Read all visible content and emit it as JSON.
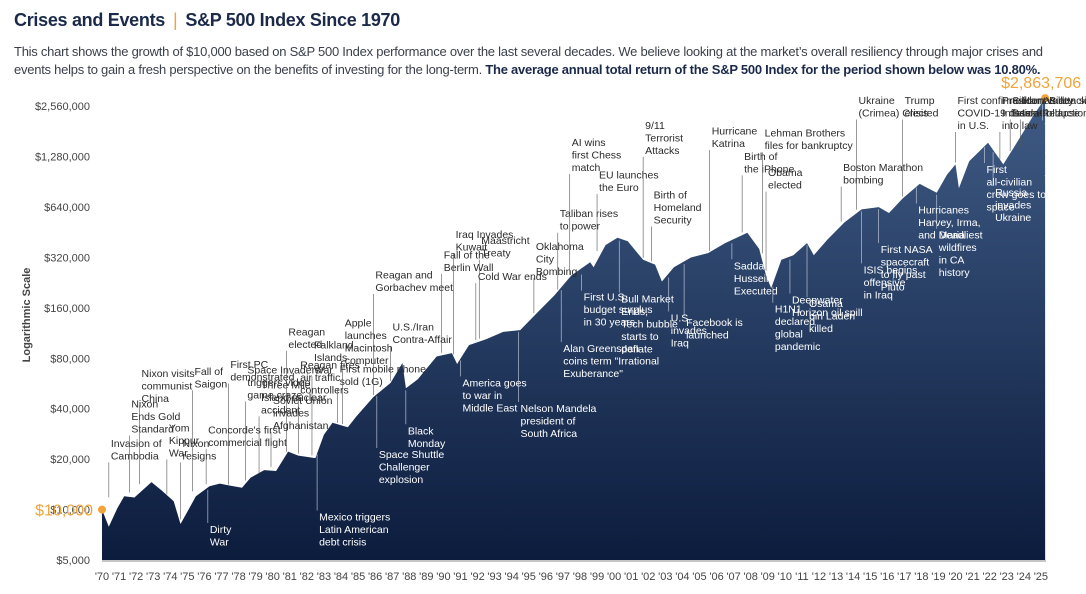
{
  "header": {
    "title_a": "Crises and Events",
    "separator": "|",
    "title_b": "S&P 500 Index Since 1970"
  },
  "description": {
    "text": "This chart shows the growth of $10,000 based on S&P 500 Index performance over the last several decades. We believe looking at the market’s overall resiliency through major crises and events helps to gain a fresh perspective on the benefits of investing for the long-term. ",
    "bold": "The average annual total return of the S&P 500 Index for the period shown below was 10.80%."
  },
  "chart_data": {
    "type": "area",
    "ylabel": "Logarithmic Scale",
    "yscale": "log",
    "ylim": [
      5000,
      3200000
    ],
    "y_ticks": [
      {
        "value": 5000,
        "label": "$5,000"
      },
      {
        "value": 10000,
        "label": "$10,000"
      },
      {
        "value": 20000,
        "label": "$20,000"
      },
      {
        "value": 40000,
        "label": "$40,000"
      },
      {
        "value": 80000,
        "label": "$80,000"
      },
      {
        "value": 160000,
        "label": "$160,000"
      },
      {
        "value": 320000,
        "label": "$320,000"
      },
      {
        "value": 640000,
        "label": "$640,000"
      },
      {
        "value": 1280000,
        "label": "$1,280,000"
      },
      {
        "value": 2560000,
        "label": "$2,560,000"
      }
    ],
    "x_labels": [
      "'70",
      "'71",
      "'72",
      "'73",
      "'74",
      "'75",
      "'76",
      "'77",
      "'78",
      "'79",
      "'80",
      "'81",
      "'82",
      "'83",
      "'84",
      "'85",
      "'86",
      "'87",
      "'88",
      "'89",
      "'90",
      "'91",
      "'92",
      "'93",
      "'94",
      "'95",
      "'96",
      "'97",
      "'98",
      "'99",
      "'00",
      "'01",
      "'02",
      "'03",
      "'04",
      "'05",
      "'06",
      "'07",
      "'08",
      "'09",
      "'10",
      "'11",
      "'12",
      "'13",
      "'14",
      "'15",
      "'16",
      "'17",
      "'18",
      "'19",
      "'20",
      "'21",
      "'22",
      "'23",
      "'24",
      "'25"
    ],
    "start": {
      "x": 1970.0,
      "value": 10000,
      "label": "$10,000"
    },
    "end": {
      "x": 2025.25,
      "value": 2863706,
      "label": "$2,863,706"
    },
    "series": [
      {
        "x": 1970.0,
        "value": 10000
      },
      {
        "x": 1970.4,
        "value": 7900
      },
      {
        "x": 1970.9,
        "value": 10200
      },
      {
        "x": 1971.3,
        "value": 12000
      },
      {
        "x": 1971.9,
        "value": 11800
      },
      {
        "x": 1972.5,
        "value": 13400
      },
      {
        "x": 1972.9,
        "value": 14600
      },
      {
        "x": 1973.5,
        "value": 13000
      },
      {
        "x": 1974.2,
        "value": 11200
      },
      {
        "x": 1974.6,
        "value": 8200
      },
      {
        "x": 1974.9,
        "value": 9300
      },
      {
        "x": 1975.5,
        "value": 12000
      },
      {
        "x": 1976.3,
        "value": 13800
      },
      {
        "x": 1976.9,
        "value": 14300
      },
      {
        "x": 1977.5,
        "value": 13900
      },
      {
        "x": 1978.2,
        "value": 13500
      },
      {
        "x": 1978.7,
        "value": 15500
      },
      {
        "x": 1979.5,
        "value": 17200
      },
      {
        "x": 1980.2,
        "value": 17000
      },
      {
        "x": 1980.9,
        "value": 22200
      },
      {
        "x": 1981.5,
        "value": 21000
      },
      {
        "x": 1982.5,
        "value": 20300
      },
      {
        "x": 1983.0,
        "value": 28000
      },
      {
        "x": 1983.5,
        "value": 33000
      },
      {
        "x": 1984.4,
        "value": 31000
      },
      {
        "x": 1984.9,
        "value": 36000
      },
      {
        "x": 1985.9,
        "value": 47000
      },
      {
        "x": 1986.9,
        "value": 57000
      },
      {
        "x": 1987.6,
        "value": 75000
      },
      {
        "x": 1987.8,
        "value": 53000
      },
      {
        "x": 1988.5,
        "value": 60000
      },
      {
        "x": 1989.6,
        "value": 82000
      },
      {
        "x": 1990.5,
        "value": 86000
      },
      {
        "x": 1990.8,
        "value": 74000
      },
      {
        "x": 1991.5,
        "value": 96000
      },
      {
        "x": 1992.5,
        "value": 104000
      },
      {
        "x": 1993.5,
        "value": 115000
      },
      {
        "x": 1994.5,
        "value": 118000
      },
      {
        "x": 1995.5,
        "value": 150000
      },
      {
        "x": 1996.5,
        "value": 190000
      },
      {
        "x": 1997.5,
        "value": 250000
      },
      {
        "x": 1998.6,
        "value": 300000
      },
      {
        "x": 1998.8,
        "value": 280000
      },
      {
        "x": 1999.5,
        "value": 380000
      },
      {
        "x": 2000.2,
        "value": 420000
      },
      {
        "x": 2000.8,
        "value": 400000
      },
      {
        "x": 2001.7,
        "value": 310000
      },
      {
        "x": 2002.4,
        "value": 290000
      },
      {
        "x": 2002.8,
        "value": 230000
      },
      {
        "x": 2003.5,
        "value": 280000
      },
      {
        "x": 2004.5,
        "value": 320000
      },
      {
        "x": 2005.5,
        "value": 340000
      },
      {
        "x": 2006.5,
        "value": 390000
      },
      {
        "x": 2007.8,
        "value": 450000
      },
      {
        "x": 2008.5,
        "value": 360000
      },
      {
        "x": 2008.9,
        "value": 250000
      },
      {
        "x": 2009.2,
        "value": 210000
      },
      {
        "x": 2009.8,
        "value": 310000
      },
      {
        "x": 2010.5,
        "value": 330000
      },
      {
        "x": 2011.3,
        "value": 390000
      },
      {
        "x": 2011.7,
        "value": 330000
      },
      {
        "x": 2012.5,
        "value": 410000
      },
      {
        "x": 2013.5,
        "value": 520000
      },
      {
        "x": 2014.5,
        "value": 620000
      },
      {
        "x": 2015.5,
        "value": 640000
      },
      {
        "x": 2016.1,
        "value": 590000
      },
      {
        "x": 2016.9,
        "value": 720000
      },
      {
        "x": 2017.9,
        "value": 880000
      },
      {
        "x": 2018.9,
        "value": 780000
      },
      {
        "x": 2019.5,
        "value": 1000000
      },
      {
        "x": 2020.0,
        "value": 1150000
      },
      {
        "x": 2020.2,
        "value": 830000
      },
      {
        "x": 2020.8,
        "value": 1200000
      },
      {
        "x": 2021.9,
        "value": 1550000
      },
      {
        "x": 2022.8,
        "value": 1150000
      },
      {
        "x": 2023.5,
        "value": 1500000
      },
      {
        "x": 2024.5,
        "value": 2200000
      },
      {
        "x": 2025.25,
        "value": 2863706
      }
    ],
    "annotations": [
      {
        "lines": [
          "Invasion of",
          "Cambodia"
        ],
        "x": 1970.4,
        "value": 11500,
        "side": "above"
      },
      {
        "lines": [
          "Nixon",
          "Ends Gold",
          "Standard"
        ],
        "x": 1971.6,
        "value": 12300,
        "side": "above"
      },
      {
        "lines": [
          "Nixon visits",
          "communist",
          "China"
        ],
        "x": 1972.2,
        "value": 13800,
        "side": "above"
      },
      {
        "lines": [
          "Fall of",
          "Saigon"
        ],
        "x": 1975.3,
        "value": 12500,
        "side": "above"
      },
      {
        "lines": [
          "Yom",
          "Kippur",
          "War"
        ],
        "x": 1973.8,
        "value": 12000,
        "side": "above"
      },
      {
        "lines": [
          "Nixon",
          "resigns"
        ],
        "x": 1974.6,
        "value": 8500,
        "side": "above"
      },
      {
        "lines": [
          "Dirty",
          "War"
        ],
        "x": 1976.2,
        "value": 13500,
        "side": "below"
      },
      {
        "lines": [
          "First PC",
          "demonstrated"
        ],
        "x": 1977.4,
        "value": 13700,
        "side": "above"
      },
      {
        "lines": [
          "Concorde's first",
          "commercial flight"
        ],
        "x": 1976.1,
        "value": 13800,
        "side": "above"
      },
      {
        "lines": [
          "Three Mile",
          "Island nuclear",
          "accident"
        ],
        "x": 1979.2,
        "value": 16000,
        "side": "above"
      },
      {
        "lines": [
          "Space Invaders",
          "triggers video",
          "game craze"
        ],
        "x": 1978.4,
        "value": 14500,
        "side": "above"
      },
      {
        "lines": [
          "Reagan",
          "elected"
        ],
        "x": 1980.8,
        "value": 21500,
        "side": "above"
      },
      {
        "lines": [
          "Soviet Union",
          "invades",
          "Afghanistan"
        ],
        "x": 1979.9,
        "value": 17500,
        "side": "above"
      },
      {
        "lines": [
          "Reagan fires",
          "air traffic",
          "controllers"
        ],
        "x": 1981.5,
        "value": 21000,
        "side": "above"
      },
      {
        "lines": [
          "Falkland",
          "Islands",
          "War"
        ],
        "x": 1982.3,
        "value": 20500,
        "side": "above"
      },
      {
        "lines": [
          "Mexico triggers",
          "Latin American",
          "debt crisis"
        ],
        "x": 1982.6,
        "value": 22000,
        "side": "below"
      },
      {
        "lines": [
          "First mobile phone",
          "sold (1G)"
        ],
        "x": 1983.8,
        "value": 32000,
        "side": "above"
      },
      {
        "lines": [
          "Apple",
          "launches",
          "Macintosh",
          "computer"
        ],
        "x": 1984.1,
        "value": 31500,
        "side": "above"
      },
      {
        "lines": [
          "Space Shuttle",
          "Challenger",
          "explosion"
        ],
        "x": 1986.1,
        "value": 49000,
        "side": "below"
      },
      {
        "lines": [
          "Reagan and",
          "Gorbachev meet"
        ],
        "x": 1985.9,
        "value": 47000,
        "side": "above"
      },
      {
        "lines": [
          "U.S./Iran",
          "Contra-Affair"
        ],
        "x": 1986.9,
        "value": 57000,
        "side": "above"
      },
      {
        "lines": [
          "Black",
          "Monday"
        ],
        "x": 1987.8,
        "value": 53000,
        "side": "below"
      },
      {
        "lines": [
          "Fall of the",
          "Berlin Wall"
        ],
        "x": 1989.9,
        "value": 84000,
        "side": "above"
      },
      {
        "lines": [
          "Iraq Invades",
          "Kuwait"
        ],
        "x": 1990.6,
        "value": 82000,
        "side": "above"
      },
      {
        "lines": [
          "America goes",
          "to war in",
          "Middle East"
        ],
        "x": 1991.0,
        "value": 80000,
        "side": "below"
      },
      {
        "lines": [
          "Cold War ends"
        ],
        "x": 1991.9,
        "value": 100000,
        "side": "above"
      },
      {
        "lines": [
          "Maastricht",
          "Treaty"
        ],
        "x": 1992.1,
        "value": 102000,
        "side": "above"
      },
      {
        "lines": [
          "Nelson Mandela",
          "president of",
          "South Africa"
        ],
        "x": 1994.4,
        "value": 118000,
        "side": "below"
      },
      {
        "lines": [
          "Oklahoma",
          "City",
          "Bombing"
        ],
        "x": 1995.3,
        "value": 145000,
        "side": "above"
      },
      {
        "lines": [
          "Taliban rises",
          "to power"
        ],
        "x": 1996.7,
        "value": 200000,
        "side": "above"
      },
      {
        "lines": [
          "Alan Greenspan",
          "coins term \"Irrational",
          "Exuberance\""
        ],
        "x": 1996.9,
        "value": 210000,
        "side": "below"
      },
      {
        "lines": [
          "AI wins",
          "first Chess",
          "match"
        ],
        "x": 1997.4,
        "value": 245000,
        "side": "above"
      },
      {
        "lines": [
          "First U.S.",
          "budget surplus",
          "in 30 years"
        ],
        "x": 1998.1,
        "value": 260000,
        "side": "below"
      },
      {
        "lines": [
          "EU launches",
          "the Euro"
        ],
        "x": 1999.0,
        "value": 340000,
        "side": "above"
      },
      {
        "lines": [
          "Bull Market",
          "Ends,",
          "Tech bubble",
          "starts to",
          "deflate"
        ],
        "x": 2000.3,
        "value": 415000,
        "side": "below"
      },
      {
        "lines": [
          "9/11",
          "Terrorist",
          "Attacks"
        ],
        "x": 2001.7,
        "value": 310000,
        "side": "above"
      },
      {
        "lines": [
          "Birth of",
          "Homeland",
          "Security"
        ],
        "x": 2002.2,
        "value": 295000,
        "side": "above"
      },
      {
        "lines": [
          "U.S.",
          "invades",
          "Iraq"
        ],
        "x": 2003.2,
        "value": 250000,
        "side": "below"
      },
      {
        "lines": [
          "Facebook is",
          "launched"
        ],
        "x": 2004.1,
        "value": 300000,
        "side": "below"
      },
      {
        "lines": [
          "Hurricane",
          "Katrina"
        ],
        "x": 2005.6,
        "value": 340000,
        "side": "above"
      },
      {
        "lines": [
          "Saddam",
          "Hussein",
          "Executed"
        ],
        "x": 2006.9,
        "value": 400000,
        "side": "below"
      },
      {
        "lines": [
          "Birth of",
          "the iPhone"
        ],
        "x": 2007.5,
        "value": 440000,
        "side": "above"
      },
      {
        "lines": [
          "Obama",
          "elected"
        ],
        "x": 2008.9,
        "value": 260000,
        "side": "above"
      },
      {
        "lines": [
          "Lehman Brothers",
          "files for bankruptcy"
        ],
        "x": 2008.7,
        "value": 330000,
        "side": "above"
      },
      {
        "lines": [
          "H1N1",
          "declared",
          "global",
          "pandemic"
        ],
        "x": 2009.3,
        "value": 220000,
        "side": "below"
      },
      {
        "lines": [
          "Deepwater",
          "Horizon oil spill"
        ],
        "x": 2010.3,
        "value": 320000,
        "side": "below"
      },
      {
        "lines": [
          "Osama",
          "bin Laden",
          "killed"
        ],
        "x": 2011.3,
        "value": 390000,
        "side": "below"
      },
      {
        "lines": [
          "Ukraine",
          "(Crimea) Crisis"
        ],
        "x": 2014.2,
        "value": 600000,
        "side": "above"
      },
      {
        "lines": [
          "Boston Marathon",
          "bombing"
        ],
        "x": 2013.3,
        "value": 510000,
        "side": "above"
      },
      {
        "lines": [
          "First NASA",
          "spacecraft",
          "to fly past",
          "Pluto"
        ],
        "x": 2015.5,
        "value": 640000,
        "side": "below"
      },
      {
        "lines": [
          "ISIS begins",
          "offensive",
          "in Iraq"
        ],
        "x": 2014.5,
        "value": 620000,
        "side": "below"
      },
      {
        "lines": [
          "Trump",
          "elected"
        ],
        "x": 2016.9,
        "value": 720000,
        "side": "above"
      },
      {
        "lines": [
          "Hurricanes",
          "Harvey, Irma,",
          "and Maria"
        ],
        "x": 2017.7,
        "value": 860000,
        "side": "below"
      },
      {
        "lines": [
          "Deadliest",
          "wildfires",
          "in CA",
          "history"
        ],
        "x": 2018.9,
        "value": 780000,
        "side": "below"
      },
      {
        "lines": [
          "First confirmed",
          "COVID-19 case",
          "in U.S."
        ],
        "x": 2020.0,
        "value": 1150000,
        "side": "above"
      },
      {
        "lines": [
          "President Biden signs",
          "Inflation Reduction Act",
          "into law"
        ],
        "x": 2022.6,
        "value": 1200000,
        "side": "above"
      },
      {
        "lines": [
          "First",
          "all-civilian",
          "crew goes to",
          "space"
        ],
        "x": 2021.7,
        "value": 1500000,
        "side": "below"
      },
      {
        "lines": [
          "Russia",
          "invades",
          "Ukraine"
        ],
        "x": 2022.2,
        "value": 1400000,
        "side": "below"
      },
      {
        "lines": [
          "Silicon Valley",
          "Bank Collapse"
        ],
        "x": 2023.2,
        "value": 1350000,
        "side": "above"
      },
      {
        "lines": [
          "Hamas attacks",
          "Israel"
        ],
        "x": 2023.8,
        "value": 1420000,
        "side": "above"
      },
      {
        "lines": [
          "Trump",
          "signs exec.",
          "order to",
          "implement",
          "tariffs"
        ],
        "x": 2025.1,
        "value": 2700000,
        "side": "below"
      }
    ]
  }
}
